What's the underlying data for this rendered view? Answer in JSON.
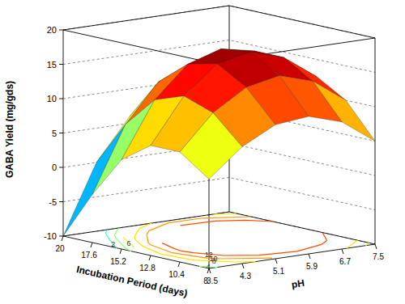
{
  "chart_data": {
    "type": "surface",
    "x_label": "Incubation Period (days)",
    "y_label": "pH",
    "z_label": "GABA Yield (mg/gds)",
    "x": [
      8,
      10.4,
      12.8,
      15.2,
      17.6,
      20
    ],
    "y": [
      3.5,
      4.3,
      5.1,
      5.9,
      6.7,
      7.5
    ],
    "z": [
      [
        3,
        7,
        9.5,
        10,
        8.5,
        5
      ],
      [
        6,
        11,
        14,
        15,
        13.5,
        10
      ],
      [
        6,
        12.5,
        16.5,
        17.5,
        16,
        12.5
      ],
      [
        3,
        11,
        15.5,
        17,
        16,
        13
      ],
      [
        -3,
        6.5,
        12,
        14,
        13.5,
        11
      ],
      [
        -10,
        0,
        6,
        9,
        9,
        7
      ]
    ],
    "xlim": [
      8,
      20
    ],
    "ylim": [
      3.5,
      7.5
    ],
    "zlim": [
      -10,
      20
    ],
    "xticks": [
      8,
      10.4,
      12.8,
      15.2,
      17.6,
      20
    ],
    "yticks": [
      3.5,
      4.3,
      5.1,
      5.9,
      6.7,
      7.5
    ],
    "zticks": [
      -10,
      -5,
      0,
      5,
      10,
      15,
      20
    ],
    "contour_levels": [
      2,
      4,
      6,
      8,
      10,
      12
    ],
    "grid": true
  }
}
